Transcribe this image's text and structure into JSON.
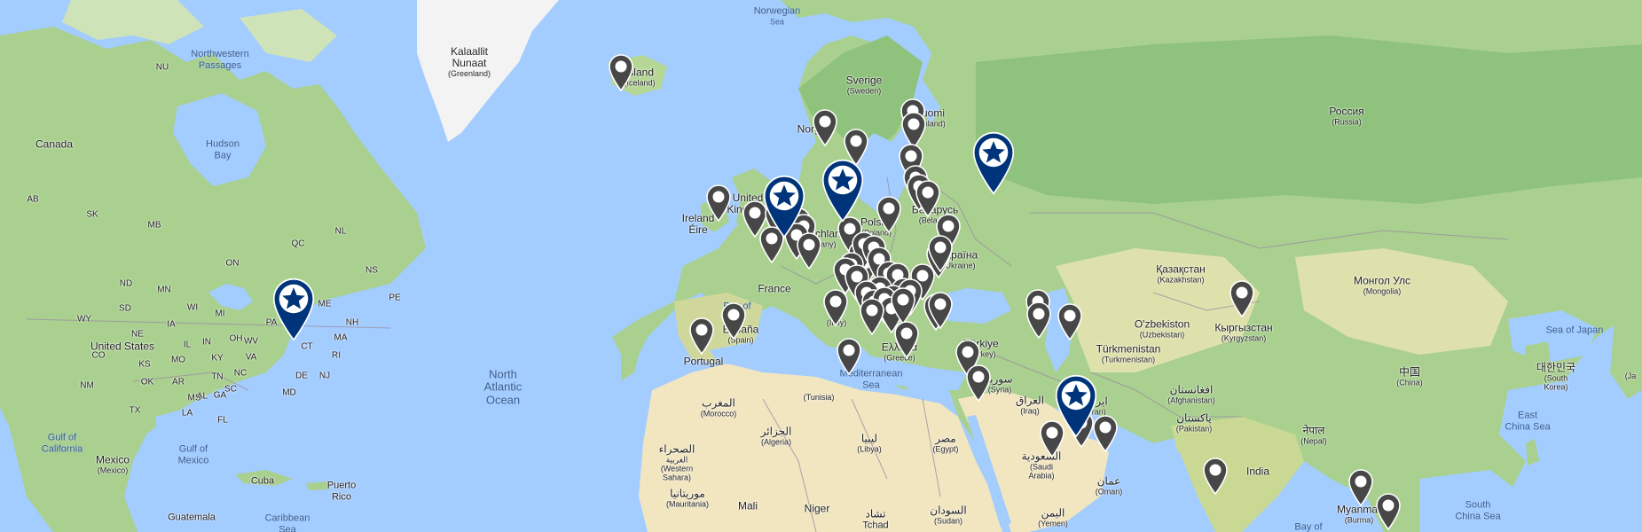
{
  "labels": {
    "norwegian_sea": {
      "name": "Norwegian",
      "sub": "Sea"
    },
    "greenland": {
      "name": "Kalaallit Nunaat",
      "sub": "(Greenland)"
    },
    "northwestern_passages": {
      "name": "Northwestern Passages"
    },
    "nu": "NU",
    "canada": "Canada",
    "hudson_bay": {
      "name": "Hudson",
      "sub": "Bay"
    },
    "qc": "QC",
    "on": "ON",
    "nl": "NL",
    "mb": "MB",
    "sk": "SK",
    "ab": "AB",
    "ns": "NS",
    "pe": "PE",
    "me": "ME",
    "nh": "NH",
    "ma": "MA",
    "ct": "CT",
    "ri": "RI",
    "nj": "NJ",
    "de": "DE",
    "md": "MD",
    "va": "VA",
    "nc": "NC",
    "sc": "SC",
    "ga": "GA",
    "fl": "FL",
    "al": "AL",
    "ms": "MS",
    "la": "LA",
    "tx": "TX",
    "ok": "OK",
    "ks": "KS",
    "mo": "MO",
    "ar": "AR",
    "tn": "TN",
    "ky": "KY",
    "in": "IN",
    "oh": "OH",
    "il": "IL",
    "ia": "IA",
    "ne": "NE",
    "sd": "SD",
    "nd": "ND",
    "mn": "MN",
    "wi": "WI",
    "mi": "MI",
    "wv": "WV",
    "pa": "PA",
    "ny": "NY",
    "co": "CO",
    "nm": "NM",
    "wy": "WY",
    "united_states": "United States",
    "gulf_of_california": {
      "name": "Gulf of",
      "sub": "California"
    },
    "gulf_of_mexico": {
      "name": "Gulf of",
      "sub": "Mexico"
    },
    "mexico": {
      "name": "Mexico",
      "sub": "(Mexico)"
    },
    "cuba": "Cuba",
    "puerto_rico": {
      "name": "Puerto",
      "sub": "Rico"
    },
    "guatemala": "Guatemala",
    "caribbean_sea": {
      "name": "Caribbean",
      "sub": "Sea"
    },
    "north_atlantic_ocean": {
      "name": "North",
      "sub": "Atlantic",
      "sub2": "Ocean"
    },
    "iceland": {
      "name": "Island",
      "sub": "(Iceland)"
    },
    "norway": "Norge",
    "sweden": {
      "name": "Sverige",
      "sub": "(Sweden)"
    },
    "finland": {
      "name": "Suomi",
      "sub": "(Finland)"
    },
    "ireland": {
      "name": "Ireland",
      "sub": "Éire"
    },
    "uk": "United Kingdom",
    "germany": {
      "name": "Deutschland",
      "sub": "(Germany)"
    },
    "poland": {
      "name": "Polska",
      "sub": "(Poland)"
    },
    "belarus": {
      "name": "Беларусь",
      "sub": "(Belarus)"
    },
    "ukraine": {
      "name": "Україна",
      "sub": "(Ukraine)"
    },
    "france": "France",
    "bay_of_biscay": "Bay of",
    "spain": {
      "name": "España",
      "sub": "(Spain)"
    },
    "portugal": "Portugal",
    "italy": "(Italy)",
    "greece": {
      "name": "Ελλάδα",
      "sub": "(Greece)"
    },
    "mediterranean_sea": {
      "name": "Mediterranean",
      "sub": "Sea"
    },
    "turkey": {
      "name": "Türkiye",
      "sub": "(Turkey)"
    },
    "syria": {
      "name": "سوريا",
      "sub": "(Syria)"
    },
    "iraq": {
      "name": "العراق",
      "sub": "(Iraq)"
    },
    "iran": {
      "name": "ایران",
      "sub": "(Iran)"
    },
    "saudi": {
      "name": "السعودية",
      "sub": "(Saudi",
      "sub2": "Arabia)"
    },
    "oman": {
      "name": "عمان",
      "sub": "(Oman)"
    },
    "yemen": {
      "name": "اليمن",
      "sub": "(Yemen)"
    },
    "russia": {
      "name": "Россия",
      "sub": "(Russia)"
    },
    "kazakhstan": {
      "name": "Қазақстан",
      "sub": "(Kazakhstan)"
    },
    "uzbekistan": {
      "name": "O'zbekiston",
      "sub": "(Uzbekistan)"
    },
    "turkmenistan": {
      "name": "Türkmenistan",
      "sub": "(Turkmenistan)"
    },
    "kyrgyzstan": {
      "name": "Кыргызстан",
      "sub": "(Kyrgyzstan)"
    },
    "afghanistan": {
      "name": "افغانستان",
      "sub": "(Afghanistan)"
    },
    "pakistan": {
      "name": "پاکستان",
      "sub": "(Pakistan)"
    },
    "nepal": {
      "name": "नेपाल",
      "sub": "(Nepal)"
    },
    "india": "India",
    "mongolia": {
      "name": "Монгол Улс",
      "sub": "(Mongolia)"
    },
    "china": {
      "name": "中国",
      "sub": "(China)"
    },
    "south_korea": {
      "name": "대한민국",
      "sub": "(South",
      "sub2": "Korea)"
    },
    "japan": "(Ja",
    "sea_of_japan": "Sea of Japan",
    "east_china_sea": {
      "name": "East",
      "sub": "China Sea"
    },
    "south_china_sea": {
      "name": "South",
      "sub": "China Sea"
    },
    "myanmar": {
      "name": "Myanmar",
      "sub": "(Burma)"
    },
    "bay_of_bengal": "Bay of",
    "morocco": {
      "name": "المغرب",
      "sub": "(Morocco)"
    },
    "algeria": {
      "name": "الجزائر",
      "sub": "(Algeria)"
    },
    "tunisia": "(Tunisia)",
    "libya": {
      "name": "ليبيا",
      "sub": "(Libya)"
    },
    "egypt": {
      "name": "مصر",
      "sub": "(Egypt)"
    },
    "western_sahara": {
      "name": "الصحراء",
      "sub": "الغربية",
      "sub2": "(Western",
      "sub3": "Sahara)"
    },
    "mauritania": {
      "name": "موريتانيا",
      "sub": "(Mauritania)"
    },
    "mali": "Mali",
    "niger": "Niger",
    "chad": {
      "name": "تشاد",
      "sub": "Tchad"
    },
    "sudan": {
      "name": "السودان",
      "sub": "(Sudan)"
    }
  },
  "colors": {
    "water": "#a3ccff",
    "land": "#b9d99a",
    "forest": "#8cc47f",
    "desert": "#f2e6c1",
    "ice": "#f5f5f5",
    "border": "#9b8fa0",
    "pin_office": "#00347a",
    "pin_location": "#474747"
  },
  "pins": {
    "offices": [
      {
        "name": "office-usa-northeast"
      },
      {
        "name": "office-uk"
      },
      {
        "name": "office-denmark"
      },
      {
        "name": "office-russia"
      },
      {
        "name": "office-uae"
      }
    ],
    "location_count": 62
  }
}
